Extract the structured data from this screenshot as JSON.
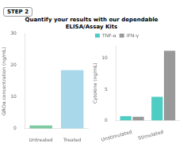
{
  "title": [
    "Quantify your results with our dependable",
    "ELISA/Assay Kits"
  ],
  "annotations": [
    "STEP 2"
  ],
  "chart_data": [
    {
      "type": "bar",
      "categories": [
        "Untreated",
        "Treated"
      ],
      "values": [
        1.0,
        18.5
      ],
      "colors": [
        "#7dc9a0",
        "#a8d8ea"
      ],
      "ylabel": "GROα concentration (ng/mL)",
      "ylim": [
        0,
        30
      ],
      "yticks": [
        0,
        10,
        20,
        30
      ],
      "grid": false
    },
    {
      "type": "bar",
      "categories": [
        "Unstimulated",
        "Stimulated"
      ],
      "series": [
        {
          "name": "TNF-α",
          "color": "#4ecdc4",
          "values": [
            0.7,
            3.8
          ]
        },
        {
          "name": "IFN-γ",
          "color": "#999999",
          "values": [
            0.6,
            11.2
          ]
        }
      ],
      "ylabel": "Cytokine (ng/mL)",
      "ylim": [
        0,
        12
      ],
      "yticks": [
        0,
        5,
        10
      ],
      "legend": "upper left",
      "grid": false
    }
  ]
}
